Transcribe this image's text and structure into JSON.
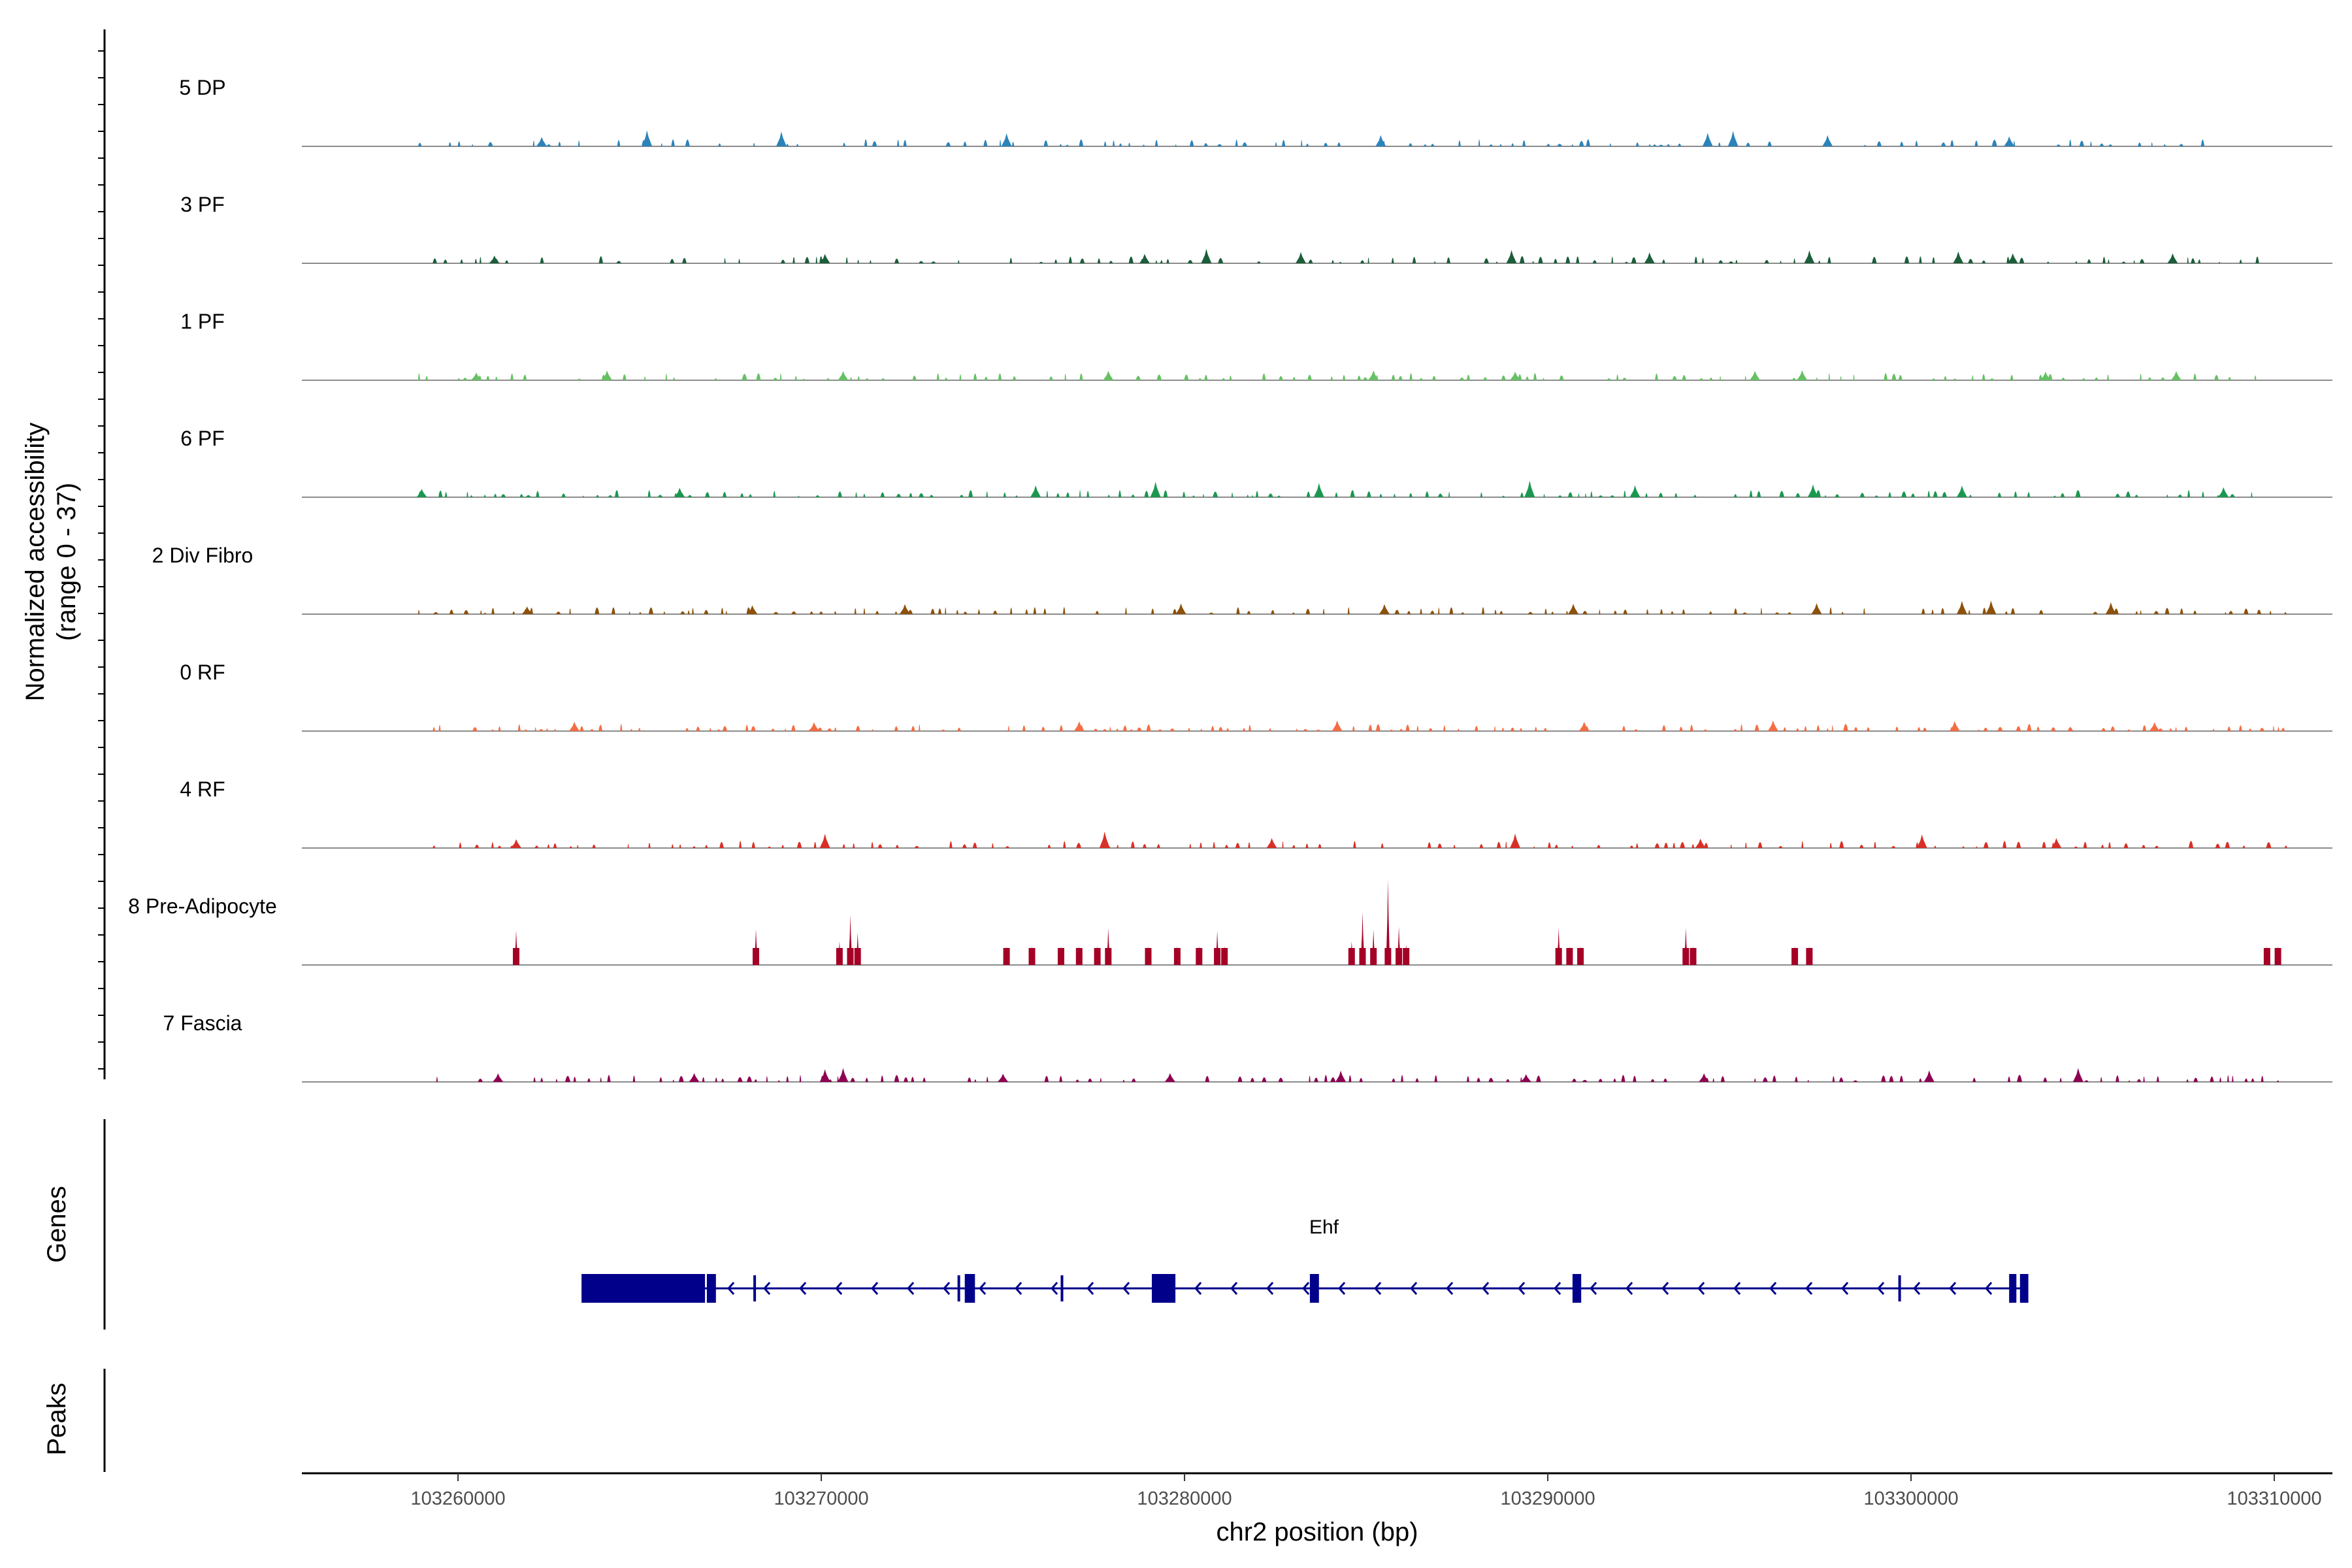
{
  "chart_data": {
    "type": "area",
    "title": "",
    "xlabel": "chr2 position (bp)",
    "ylabel_line1": "Normalized accessibility",
    "ylabel_line2": "(range 0 - 37)",
    "ylim": [
      0,
      37
    ],
    "xlim": [
      103255700,
      103311600
    ],
    "x_ticks": [
      103260000,
      103270000,
      103280000,
      103290000,
      103300000,
      103310000
    ],
    "x_tick_labels": [
      "103260000",
      "103270000",
      "103280000",
      "103290000",
      "103300000",
      "103310000"
    ],
    "series": [
      {
        "name": "5 DP",
        "color": "#2b83ba",
        "segments": [
          [
            103258900,
            103296400,
            0.22
          ],
          [
            103298700,
            103301200,
            0.14
          ],
          [
            103301400,
            103305500,
            0.2
          ],
          [
            103305700,
            103308800,
            0.12
          ]
        ],
        "peaks": [
          [
            103262300,
            3.2
          ],
          [
            103265200,
            5.4
          ],
          [
            103268900,
            5.0
          ],
          [
            103275100,
            4.4
          ],
          [
            103285400,
            3.8
          ],
          [
            103294400,
            4.6
          ],
          [
            103295100,
            5.2
          ],
          [
            103297700,
            3.8
          ],
          [
            103302700,
            3.4
          ]
        ]
      },
      {
        "name": "3 PF",
        "color": "#1b5e3a",
        "segments": [
          [
            103259300,
            103310300,
            0.2
          ]
        ],
        "peaks": [
          [
            103261000,
            2.6
          ],
          [
            103270100,
            3.2
          ],
          [
            103278900,
            3.2
          ],
          [
            103280600,
            4.9
          ],
          [
            103283200,
            3.8
          ],
          [
            103289000,
            4.5
          ],
          [
            103292800,
            3.7
          ],
          [
            103297200,
            4.4
          ],
          [
            103301300,
            4.0
          ],
          [
            103302800,
            3.4
          ],
          [
            103307200,
            3.4
          ]
        ]
      },
      {
        "name": "1 PF",
        "color": "#66c164",
        "segments": [
          [
            103258900,
            103310200,
            0.23
          ]
        ],
        "peaks": [
          [
            103260500,
            2.6
          ],
          [
            103264100,
            3.3
          ],
          [
            103270600,
            3.1
          ],
          [
            103277900,
            3.2
          ],
          [
            103285200,
            3.3
          ],
          [
            103289100,
            2.9
          ],
          [
            103295700,
            3.2
          ],
          [
            103297000,
            3.4
          ],
          [
            103303700,
            2.9
          ],
          [
            103307300,
            3.1
          ]
        ]
      },
      {
        "name": "6 PF",
        "color": "#1a9850",
        "segments": [
          [
            103258900,
            103310200,
            0.3
          ]
        ],
        "peaks": [
          [
            103259000,
            2.8
          ],
          [
            103266100,
            3.2
          ],
          [
            103275900,
            4.0
          ],
          [
            103279200,
            5.2
          ],
          [
            103283700,
            4.8
          ],
          [
            103289500,
            5.6
          ],
          [
            103292400,
            4.0
          ],
          [
            103297300,
            4.3
          ],
          [
            103301400,
            3.9
          ],
          [
            103308600,
            3.4
          ]
        ]
      },
      {
        "name": "2 Div Fibro",
        "color": "#8c510a",
        "segments": [
          [
            103258900,
            103310300,
            0.24
          ]
        ],
        "peaks": [
          [
            103261900,
            2.6
          ],
          [
            103268100,
            3.0
          ],
          [
            103272300,
            3.4
          ],
          [
            103279900,
            3.6
          ],
          [
            103285500,
            3.4
          ],
          [
            103290700,
            3.5
          ],
          [
            103297400,
            3.7
          ],
          [
            103301400,
            4.5
          ],
          [
            103302200,
            4.6
          ],
          [
            103305500,
            4.0
          ]
        ]
      },
      {
        "name": "0 RF",
        "color": "#f46d43",
        "segments": [
          [
            103259300,
            103310300,
            0.24
          ]
        ],
        "peaks": [
          [
            103263200,
            3.2
          ],
          [
            103269800,
            3.0
          ],
          [
            103277100,
            3.3
          ],
          [
            103284200,
            3.6
          ],
          [
            103291000,
            3.2
          ],
          [
            103296200,
            3.6
          ],
          [
            103301200,
            3.4
          ],
          [
            103306700,
            3.0
          ]
        ]
      },
      {
        "name": "4 RF",
        "color": "#d73027",
        "segments": [
          [
            103259300,
            103310300,
            0.26
          ]
        ],
        "peaks": [
          [
            103261600,
            3.0
          ],
          [
            103270100,
            4.8
          ],
          [
            103277800,
            5.6
          ],
          [
            103282400,
            3.4
          ],
          [
            103289100,
            4.9
          ],
          [
            103294200,
            3.2
          ],
          [
            103300300,
            4.6
          ],
          [
            103304000,
            3.4
          ]
        ]
      },
      {
        "name": "8 Pre-Adipocyte",
        "color": "#a50026",
        "segments": [],
        "peaks": [
          [
            103261600,
            11.8
          ],
          [
            103268200,
            12.2
          ],
          [
            103270500,
            8.0
          ],
          [
            103270800,
            17.0
          ],
          [
            103271000,
            11.0
          ],
          [
            103275100,
            6.4
          ],
          [
            103275800,
            6.4
          ],
          [
            103276600,
            6.4
          ],
          [
            103277100,
            6.4
          ],
          [
            103277600,
            6.4
          ],
          [
            103277900,
            12.6
          ],
          [
            103279000,
            6.4
          ],
          [
            103279800,
            6.4
          ],
          [
            103280400,
            6.4
          ],
          [
            103280900,
            11.6
          ],
          [
            103281100,
            6.4
          ],
          [
            103284600,
            8.0
          ],
          [
            103284900,
            18.0
          ],
          [
            103285200,
            12.0
          ],
          [
            103285600,
            29.0
          ],
          [
            103285900,
            13.0
          ],
          [
            103286100,
            7.0
          ],
          [
            103290300,
            12.6
          ],
          [
            103290600,
            6.4
          ],
          [
            103290900,
            6.4
          ],
          [
            103293800,
            12.6
          ],
          [
            103294000,
            6.4
          ],
          [
            103296800,
            6.4
          ],
          [
            103297200,
            6.4
          ],
          [
            103309800,
            6.4
          ],
          [
            103310100,
            6.4
          ]
        ]
      },
      {
        "name": "7 Fascia",
        "color": "#8e0152",
        "segments": [
          [
            103259400,
            103310300,
            0.24
          ]
        ],
        "peaks": [
          [
            103261100,
            2.9
          ],
          [
            103266500,
            3.0
          ],
          [
            103270100,
            4.3
          ],
          [
            103270600,
            4.7
          ],
          [
            103275000,
            2.8
          ],
          [
            103279600,
            3.0
          ],
          [
            103284300,
            3.8
          ],
          [
            103289400,
            2.6
          ],
          [
            103294300,
            2.9
          ],
          [
            103300500,
            3.9
          ],
          [
            103304600,
            4.7
          ]
        ]
      }
    ],
    "genes_panel_title": "Genes",
    "peaks_panel_title": "Peaks",
    "gene": {
      "name": "Ehf",
      "color": "#00008b",
      "strand": "-",
      "start": 103263400,
      "end": 103303200,
      "exons": [
        [
          103263400,
          103266800
        ],
        [
          103266850,
          103267100
        ],
        [
          103268130,
          103268170
        ],
        [
          103273750,
          103273790
        ],
        [
          103273950,
          103274230
        ],
        [
          103276590,
          103276620
        ],
        [
          103279100,
          103279750
        ],
        [
          103283450,
          103283700
        ],
        [
          103290680,
          103290920
        ],
        [
          103299650,
          103299690
        ],
        [
          103302700,
          103302900
        ],
        [
          103303000,
          103303230
        ]
      ]
    }
  }
}
